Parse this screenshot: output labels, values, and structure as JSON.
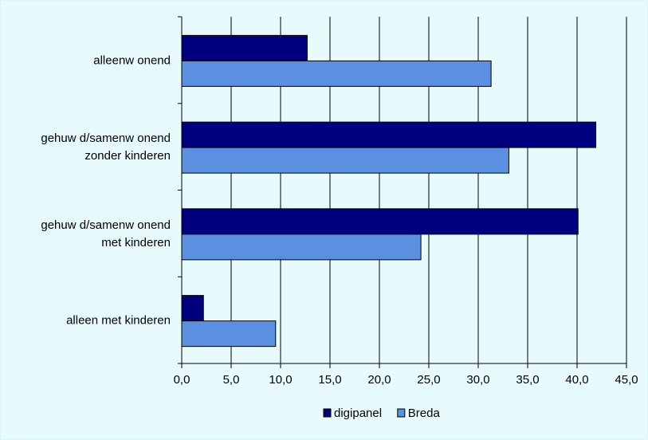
{
  "chart_data": {
    "type": "bar",
    "orientation": "horizontal",
    "categories": [
      [
        "alleenw onend"
      ],
      [
        "gehuw d/samenw onend",
        "zonder kinderen"
      ],
      [
        "gehuw d/samenw onend",
        "met kinderen"
      ],
      [
        "alleen met kinderen"
      ]
    ],
    "series": [
      {
        "name": "digipanel",
        "values": [
          12.7,
          41.9,
          40.1,
          2.2
        ],
        "color": "#00007f"
      },
      {
        "name": "Breda",
        "values": [
          31.3,
          33.1,
          24.2,
          9.5
        ],
        "color": "#5b8fe0"
      }
    ],
    "xlim": [
      0,
      45
    ],
    "xticks": [
      "0,0",
      "5,0",
      "10,0",
      "15,0",
      "20,0",
      "25,0",
      "30,0",
      "35,0",
      "40,0",
      "45,0"
    ],
    "grid": true,
    "legend_position": "bottom",
    "background_color": "#e7fbfc",
    "title": "",
    "xlabel": "",
    "ylabel": ""
  }
}
